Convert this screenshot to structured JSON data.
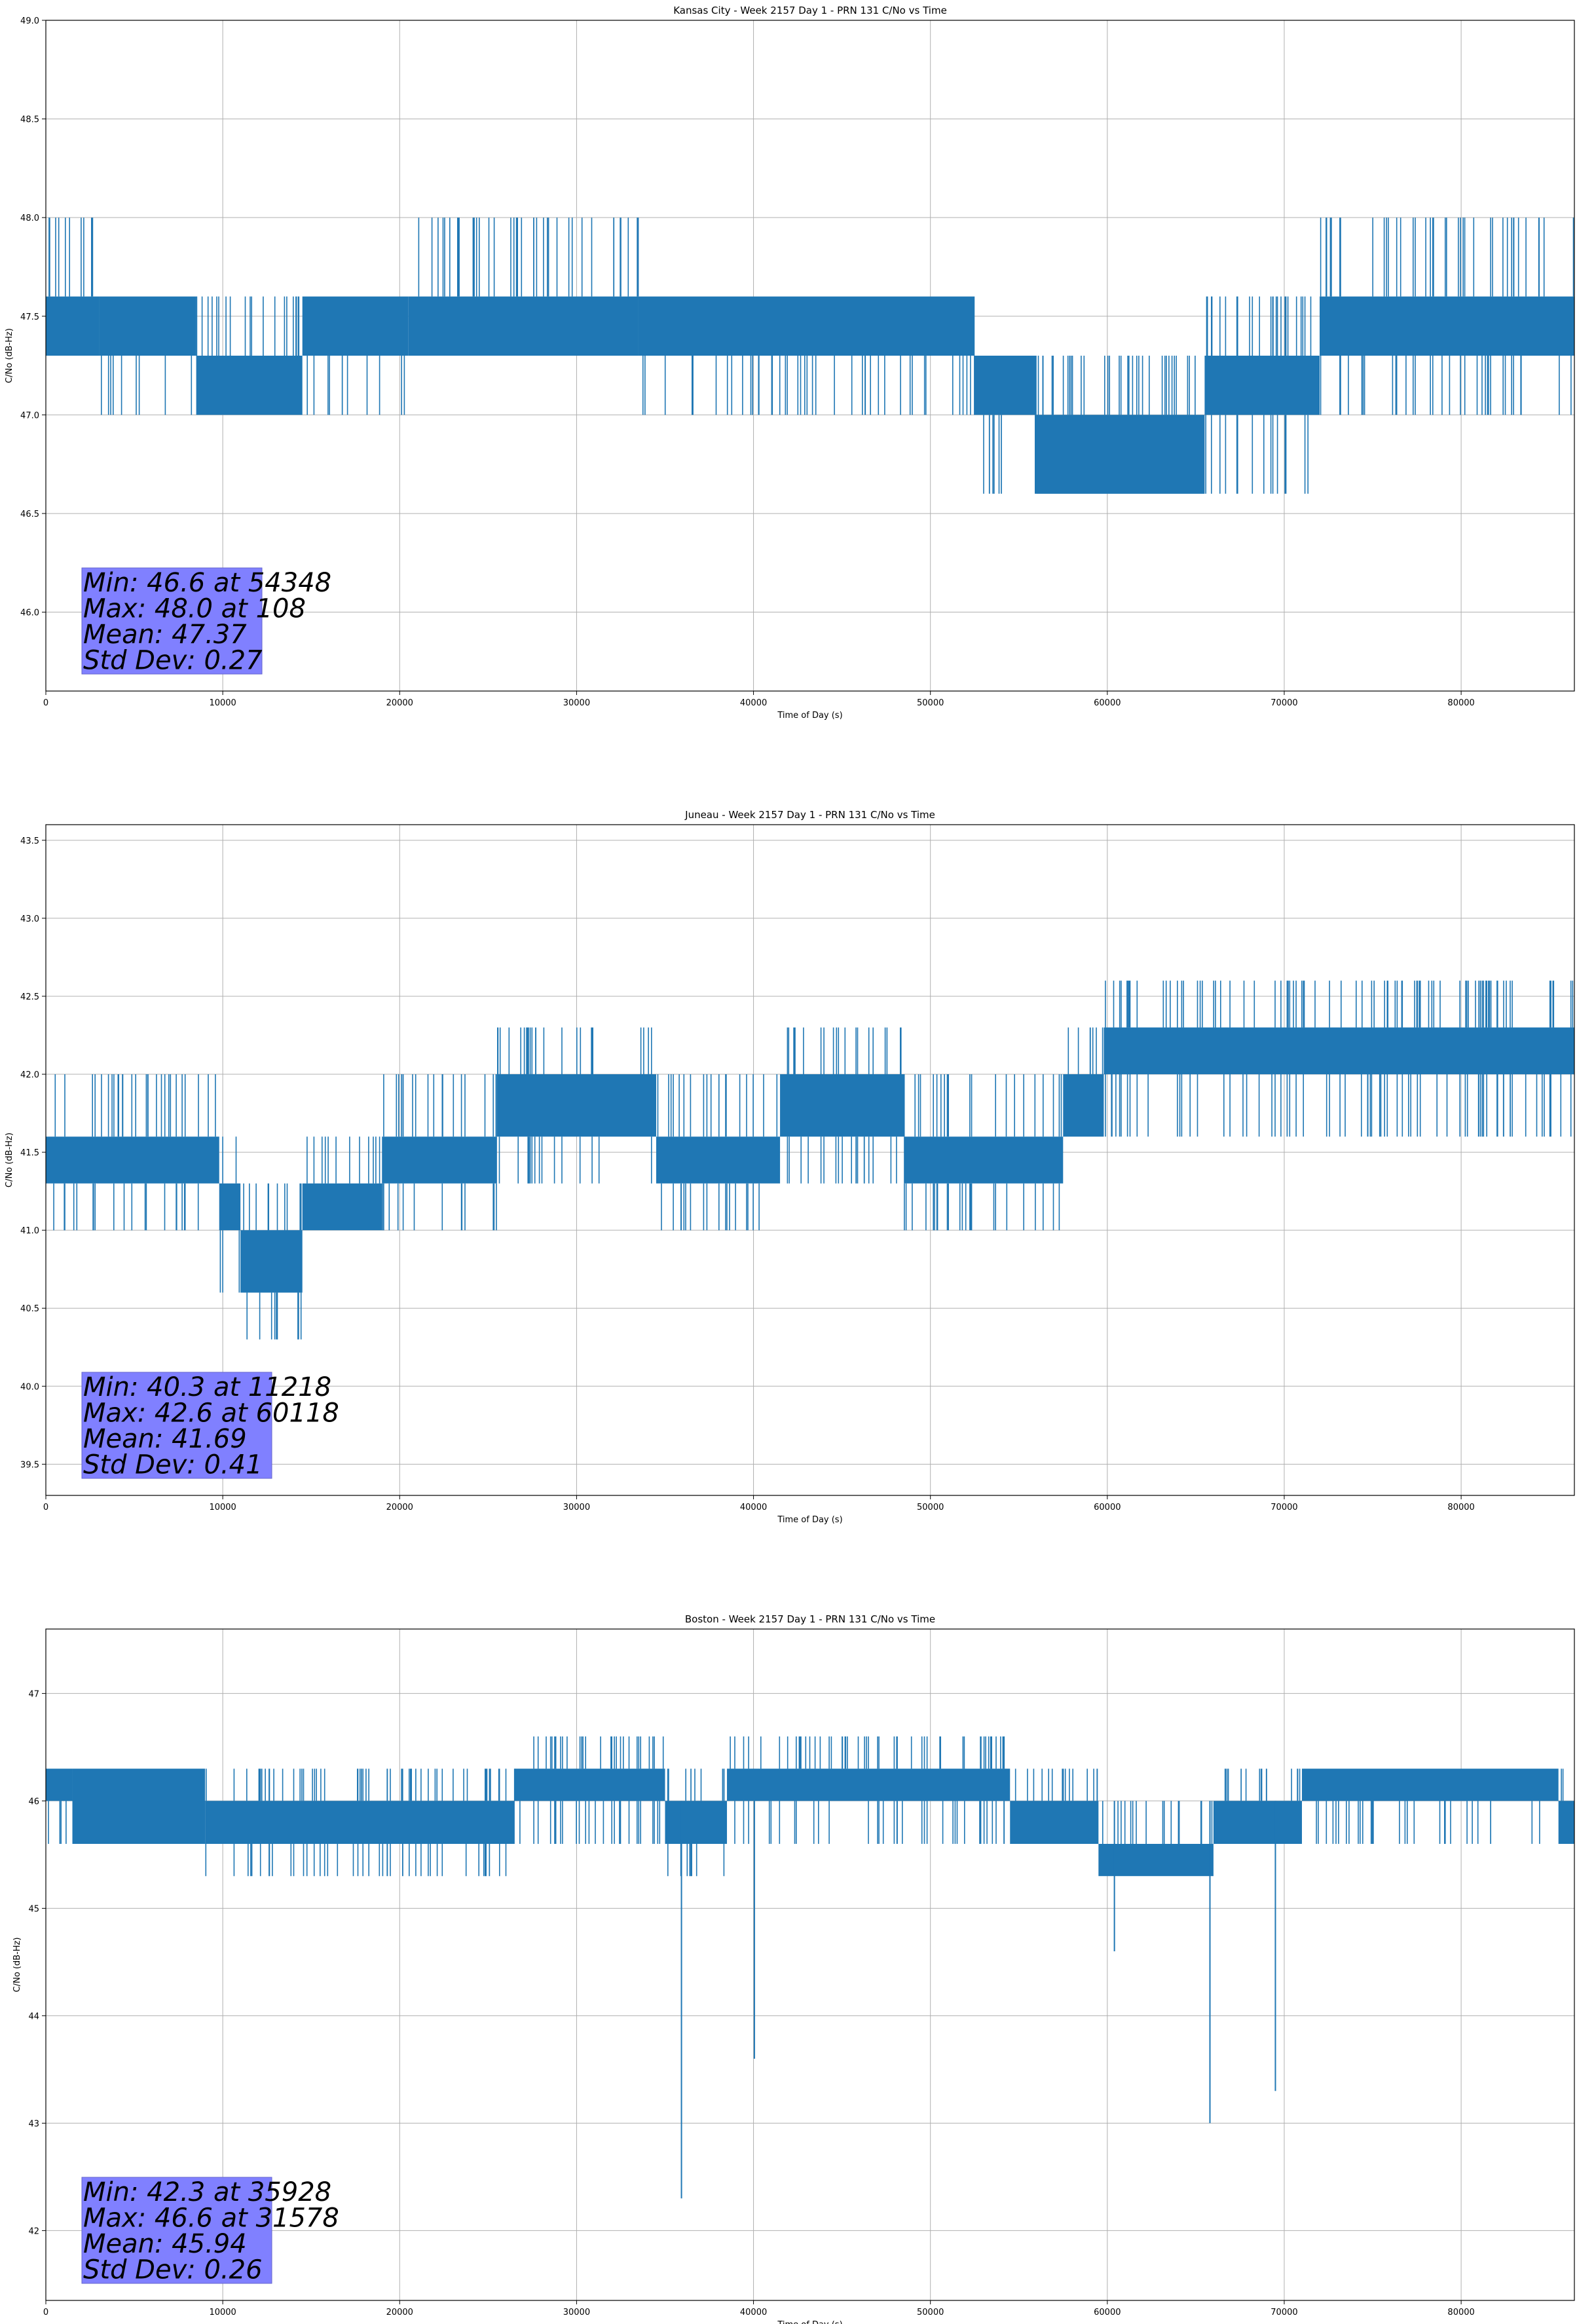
{
  "chart_data": [
    {
      "type": "line",
      "title": "Kansas City - Week 2157 Day 1 - PRN 131 C/No vs Time",
      "xlabel": "Time of Day (s)",
      "ylabel": "C/No (dB-Hz)",
      "xlim": [
        0,
        86400
      ],
      "ylim": [
        45.6,
        49.0
      ],
      "xticks": [
        0,
        10000,
        20000,
        30000,
        40000,
        50000,
        60000,
        70000,
        80000
      ],
      "yticks": [
        46.0,
        46.5,
        47.0,
        47.5,
        48.0,
        48.5,
        49.0
      ],
      "grid": true,
      "color": "#1f77b4",
      "segments": [
        {
          "x0": 0,
          "x1": 3000,
          "band": [
            47.3,
            47.6
          ],
          "spikes_up": 48.0,
          "spikes_down": 47.3
        },
        {
          "x0": 3000,
          "x1": 8500,
          "band": [
            47.3,
            47.6
          ],
          "spikes_up": 47.6,
          "spikes_down": 47.0
        },
        {
          "x0": 8500,
          "x1": 14500,
          "band": [
            47.0,
            47.3
          ],
          "spikes_up": 47.6,
          "spikes_down": 47.0
        },
        {
          "x0": 14500,
          "x1": 20500,
          "band": [
            47.3,
            47.6
          ],
          "spikes_up": 47.6,
          "spikes_down": 47.0
        },
        {
          "x0": 20500,
          "x1": 33500,
          "band": [
            47.3,
            47.6
          ],
          "spikes_up": 48.0,
          "spikes_down": 47.3
        },
        {
          "x0": 33500,
          "x1": 52500,
          "band": [
            47.3,
            47.6
          ],
          "spikes_up": 47.6,
          "spikes_down": 47.0
        },
        {
          "x0": 52500,
          "x1": 56000,
          "band": [
            47.0,
            47.3
          ],
          "spikes_up": 47.3,
          "spikes_down": 46.6
        },
        {
          "x0": 56000,
          "x1": 65500,
          "band": [
            46.6,
            47.0
          ],
          "spikes_up": 47.3,
          "spikes_down": 46.6
        },
        {
          "x0": 65500,
          "x1": 72000,
          "band": [
            47.0,
            47.3
          ],
          "spikes_up": 47.6,
          "spikes_down": 46.6
        },
        {
          "x0": 72000,
          "x1": 86400,
          "band": [
            47.3,
            47.6
          ],
          "spikes_up": 48.0,
          "spikes_down": 47.0
        }
      ],
      "stats": {
        "min": "Min: 46.6 at 54348",
        "max": "Max: 48.0 at 108",
        "mean": "Mean: 47.37",
        "std": "Std Dev: 0.27"
      }
    },
    {
      "type": "line",
      "title": "Juneau - Week 2157 Day 1 - PRN 131 C/No vs Time",
      "xlabel": "Time of Day (s)",
      "ylabel": "C/No (dB-Hz)",
      "xlim": [
        0,
        86400
      ],
      "ylim": [
        39.3,
        43.6
      ],
      "xticks": [
        0,
        10000,
        20000,
        30000,
        40000,
        50000,
        60000,
        70000,
        80000
      ],
      "yticks": [
        39.5,
        40.0,
        40.5,
        41.0,
        41.5,
        42.0,
        42.5,
        43.0,
        43.5
      ],
      "grid": true,
      "color": "#1f77b4",
      "segments": [
        {
          "x0": 0,
          "x1": 9800,
          "band": [
            41.3,
            41.6
          ],
          "spikes_up": 42.0,
          "spikes_down": 41.0
        },
        {
          "x0": 9800,
          "x1": 11000,
          "band": [
            41.0,
            41.3
          ],
          "spikes_up": 41.6,
          "spikes_down": 40.6
        },
        {
          "x0": 11000,
          "x1": 14500,
          "band": [
            40.6,
            41.0
          ],
          "spikes_up": 41.3,
          "spikes_down": 40.3
        },
        {
          "x0": 14500,
          "x1": 19000,
          "band": [
            41.0,
            41.3
          ],
          "spikes_up": 41.6,
          "spikes_down": 41.0
        },
        {
          "x0": 19000,
          "x1": 25500,
          "band": [
            41.3,
            41.6
          ],
          "spikes_up": 42.0,
          "spikes_down": 41.0
        },
        {
          "x0": 25500,
          "x1": 34500,
          "band": [
            41.6,
            42.0
          ],
          "spikes_up": 42.3,
          "spikes_down": 41.3
        },
        {
          "x0": 34500,
          "x1": 41500,
          "band": [
            41.3,
            41.6
          ],
          "spikes_up": 42.0,
          "spikes_down": 41.0
        },
        {
          "x0": 41500,
          "x1": 48500,
          "band": [
            41.6,
            42.0
          ],
          "spikes_up": 42.3,
          "spikes_down": 41.3
        },
        {
          "x0": 48500,
          "x1": 57500,
          "band": [
            41.3,
            41.6
          ],
          "spikes_up": 42.0,
          "spikes_down": 41.0
        },
        {
          "x0": 57500,
          "x1": 59800,
          "band": [
            41.6,
            42.0
          ],
          "spikes_up": 42.3,
          "spikes_down": 41.6
        },
        {
          "x0": 59800,
          "x1": 86400,
          "band": [
            42.0,
            42.3
          ],
          "spikes_up": 42.6,
          "spikes_down": 41.6
        }
      ],
      "stats": {
        "min": "Min: 40.3 at 11218",
        "max": "Max: 42.6 at 60118",
        "mean": "Mean: 41.69",
        "std": "Std Dev: 0.41"
      }
    },
    {
      "type": "line",
      "title": "Boston - Week 2157 Day 1 - PRN 131 C/No vs Time",
      "xlabel": "Time of Day (s)",
      "ylabel": "C/No (dB-Hz)",
      "xlim": [
        0,
        86400
      ],
      "ylim": [
        41.35,
        47.6
      ],
      "xticks": [
        0,
        10000,
        20000,
        30000,
        40000,
        50000,
        60000,
        70000,
        80000
      ],
      "yticks": [
        42,
        43,
        44,
        45,
        46,
        47
      ],
      "grid": true,
      "color": "#1f77b4",
      "segments": [
        {
          "x0": 0,
          "x1": 1500,
          "band": [
            46.0,
            46.3
          ],
          "spikes_up": 46.3,
          "spikes_down": 45.6
        },
        {
          "x0": 1500,
          "x1": 9000,
          "band": [
            45.6,
            46.3
          ],
          "spikes_up": 46.3,
          "spikes_down": 45.6
        },
        {
          "x0": 9000,
          "x1": 26500,
          "band": [
            45.6,
            46.0
          ],
          "spikes_up": 46.3,
          "spikes_down": 45.3
        },
        {
          "x0": 26500,
          "x1": 35000,
          "band": [
            46.0,
            46.3
          ],
          "spikes_up": 46.6,
          "spikes_down": 45.6
        },
        {
          "x0": 35000,
          "x1": 38500,
          "band": [
            45.6,
            46.0
          ],
          "spikes_up": 46.3,
          "spikes_down": 45.3
        },
        {
          "x0": 38500,
          "x1": 54500,
          "band": [
            46.0,
            46.3
          ],
          "spikes_up": 46.6,
          "spikes_down": 45.6
        },
        {
          "x0": 54500,
          "x1": 59500,
          "band": [
            45.6,
            46.0
          ],
          "spikes_up": 46.3,
          "spikes_down": 45.6
        },
        {
          "x0": 59500,
          "x1": 66000,
          "band": [
            45.3,
            45.6
          ],
          "spikes_up": 46.0,
          "spikes_down": 45.3
        },
        {
          "x0": 66000,
          "x1": 71000,
          "band": [
            45.6,
            46.0
          ],
          "spikes_up": 46.3,
          "spikes_down": 45.6
        },
        {
          "x0": 71000,
          "x1": 85500,
          "band": [
            46.0,
            46.3
          ],
          "spikes_up": 46.3,
          "spikes_down": 45.6
        },
        {
          "x0": 85500,
          "x1": 86400,
          "band": [
            45.6,
            46.0
          ],
          "spikes_up": 46.3,
          "spikes_down": 45.6
        }
      ],
      "dips": [
        {
          "x": 35928,
          "y": 42.3
        },
        {
          "x": 40050,
          "y": 43.6
        },
        {
          "x": 60400,
          "y": 44.6
        },
        {
          "x": 65800,
          "y": 43.0
        },
        {
          "x": 69500,
          "y": 43.3
        }
      ],
      "stats": {
        "min": "Min: 42.3 at 35928",
        "max": "Max: 46.6 at 31578",
        "mean": "Mean: 45.94",
        "std": "Std Dev: 0.26"
      }
    }
  ]
}
